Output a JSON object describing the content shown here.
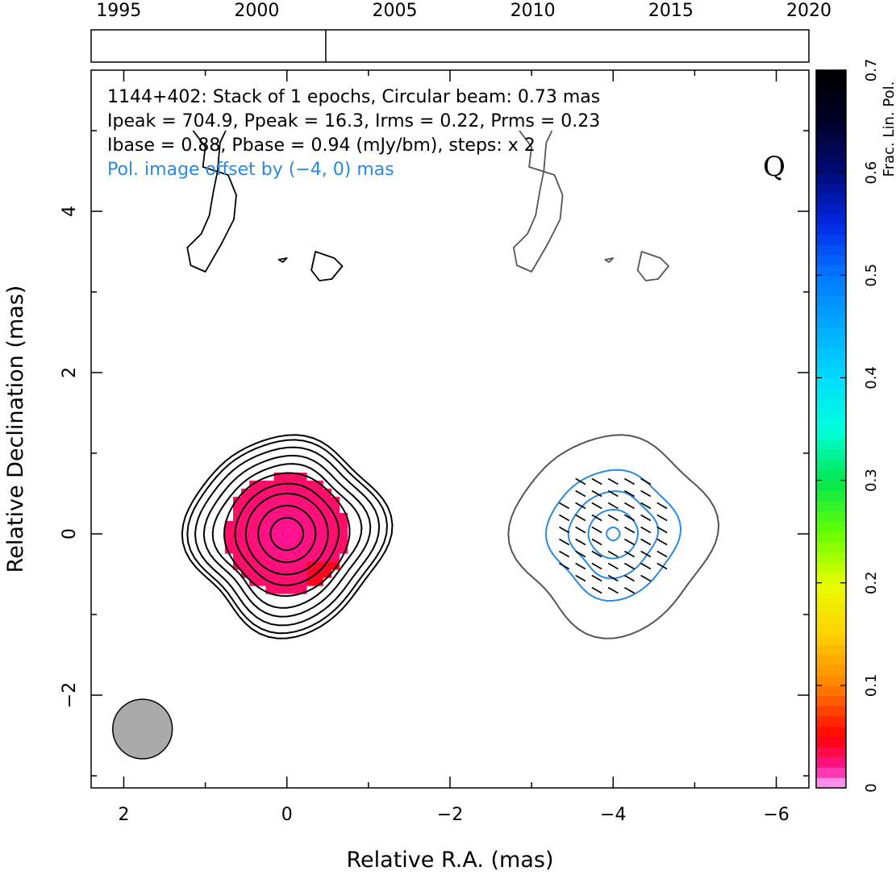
{
  "chart_data": {
    "type": "heatmap",
    "title": "1144+402: Stack of 1 epochs, Circular beam: 0.73 mas",
    "annotation_lines": [
      "Ipeak = 704.9, Ppeak = 16.3, Irms = 0.22, Prms = 0.23",
      "Ibase = 0.88, Pbase = 0.94 (mJy/bm), steps: x 2"
    ],
    "offset_note": "Pol. image offset by (−4, 0) mas",
    "stokes_label": "Q",
    "xlabel": "Relative R.A. (mas)",
    "ylabel": "Relative Declination (mas)",
    "xlim": [
      2.4,
      -6.4
    ],
    "ylim": [
      -3.15,
      5.75
    ],
    "x_ticks": [
      2,
      0,
      -2,
      -4,
      -6
    ],
    "x_tick_labels": [
      "2",
      "0",
      "−2",
      "−4",
      "−6"
    ],
    "y_ticks": [
      -2,
      0,
      2,
      4
    ],
    "y_tick_labels": [
      "−2",
      "0",
      "2",
      "4"
    ],
    "timeline": {
      "range": [
        1994,
        2020
      ],
      "tick_years": [
        1995,
        2000,
        2005,
        2010,
        2015,
        2020
      ],
      "tick_labels": [
        "1995",
        "2000",
        "2005",
        "2010",
        "2015",
        "2020"
      ],
      "epochs": [
        2002.5
      ]
    },
    "colorbar": {
      "label": "Frac. Lin. Pol.",
      "range": [
        0,
        0.7
      ],
      "ticks": [
        0,
        0.1,
        0.2,
        0.3,
        0.4,
        0.5,
        0.6,
        0.7
      ],
      "tick_labels": [
        "0",
        "0.1",
        "0.2",
        "0.3",
        "0.4",
        "0.5",
        "0.6",
        "0.7"
      ]
    },
    "beam": {
      "ra": 1.77,
      "dec": -2.42,
      "diameter_mas": 0.73
    },
    "total_intensity": {
      "center": [
        0,
        0
      ],
      "contour_radii_mas": [
        0.2,
        0.35,
        0.5,
        0.62,
        0.75,
        0.85,
        0.95,
        1.05,
        1.14,
        1.2
      ]
    },
    "frac_pol_map": {
      "center": [
        0,
        0
      ],
      "extent_mas": 0.74,
      "value_center": 0.02,
      "value_edge": 0.03
    },
    "polarized_copy": {
      "offset_ra": -4,
      "outer_contour_radius_mas": 1.2,
      "pol_contour_radii_mas": [
        0.08,
        0.3,
        0.52,
        0.78
      ],
      "evpa_deg": 60
    },
    "blobs": [
      {
        "type": "hook",
        "points": [
          [
            1.15,
            5.0
          ],
          [
            1.0,
            4.8
          ],
          [
            1.03,
            4.55
          ],
          [
            0.72,
            4.45
          ],
          [
            0.62,
            4.2
          ],
          [
            0.65,
            3.9
          ],
          [
            0.8,
            3.6
          ],
          [
            1.0,
            3.25
          ],
          [
            1.18,
            3.33
          ],
          [
            1.22,
            3.55
          ],
          [
            1.05,
            3.72
          ],
          [
            0.95,
            3.95
          ],
          [
            0.9,
            4.25
          ],
          [
            0.85,
            4.5
          ],
          [
            0.82,
            4.85
          ],
          [
            0.75,
            5.0
          ]
        ]
      },
      {
        "type": "blob",
        "points": [
          [
            -0.35,
            3.5
          ],
          [
            -0.58,
            3.42
          ],
          [
            -0.68,
            3.32
          ],
          [
            -0.55,
            3.16
          ],
          [
            -0.4,
            3.14
          ],
          [
            -0.3,
            3.27
          ]
        ]
      },
      {
        "type": "dot",
        "points": [
          [
            0.1,
            3.4
          ],
          [
            0.0,
            3.42
          ],
          [
            0.05,
            3.37
          ]
        ]
      }
    ]
  }
}
